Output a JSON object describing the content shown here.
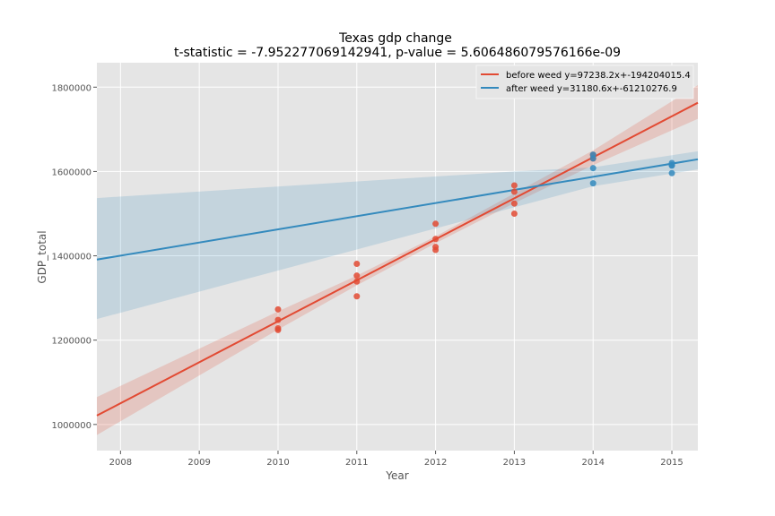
{
  "chart_data": {
    "type": "scatter",
    "title": "Texas gdp change",
    "subtitle": "t-statistic = -7.952277069142941, p-value = 5.606486079576166e-09",
    "xlabel": "Year",
    "ylabel": "GDP_total",
    "xlim": [
      2007.7,
      2015.33
    ],
    "ylim": [
      938000,
      1858000
    ],
    "xticks": [
      "2008",
      "2009",
      "2010",
      "2011",
      "2012",
      "2013",
      "2014",
      "2015"
    ],
    "yticks": [
      "1000000",
      "1200000",
      "1400000",
      "1600000",
      "1800000"
    ],
    "grid": true,
    "legend_position": "top-right",
    "series": [
      {
        "name": "before weed y=97238.2x+-194204015.4",
        "color": "#E24A33",
        "points": [
          [
            2010,
            1273000
          ],
          [
            2010,
            1248000
          ],
          [
            2010,
            1228000
          ],
          [
            2010,
            1224000
          ],
          [
            2011,
            1381000
          ],
          [
            2011,
            1353000
          ],
          [
            2011,
            1339000
          ],
          [
            2011,
            1304000
          ],
          [
            2012,
            1476000
          ],
          [
            2012,
            1440000
          ],
          [
            2012,
            1421000
          ],
          [
            2012,
            1414000
          ],
          [
            2013,
            1567000
          ],
          [
            2013,
            1552000
          ],
          [
            2013,
            1524000
          ],
          [
            2013,
            1500000
          ],
          [
            2014,
            1639000
          ],
          [
            2014,
            1631000
          ]
        ],
        "fit": {
          "slope": 97238.2,
          "intercept": -194204015.4
        },
        "band": [
          [
            2007.7,
            1065000,
            975000
          ],
          [
            2010,
            1268000,
            1225000
          ],
          [
            2011,
            1353000,
            1330000
          ],
          [
            2012,
            1446000,
            1430000
          ],
          [
            2013,
            1548000,
            1525000
          ],
          [
            2014,
            1650000,
            1615000
          ],
          [
            2015.33,
            1805000,
            1725000
          ]
        ]
      },
      {
        "name": "after weed y=31180.6x+-61210276.9",
        "color": "#348ABD",
        "points": [
          [
            2014,
            1640000
          ],
          [
            2014,
            1631000
          ],
          [
            2014,
            1608000
          ],
          [
            2014,
            1572000
          ],
          [
            2015,
            1620000
          ],
          [
            2015,
            1615000
          ],
          [
            2015,
            1614000
          ],
          [
            2015,
            1596000
          ]
        ],
        "fit": {
          "slope": 31180.6,
          "intercept": -61210276.9
        },
        "band": [
          [
            2007.7,
            1537000,
            1250000
          ],
          [
            2013,
            1600000,
            1515000
          ],
          [
            2014,
            1610000,
            1565000
          ],
          [
            2015.33,
            1648000,
            1605000
          ]
        ]
      }
    ]
  }
}
